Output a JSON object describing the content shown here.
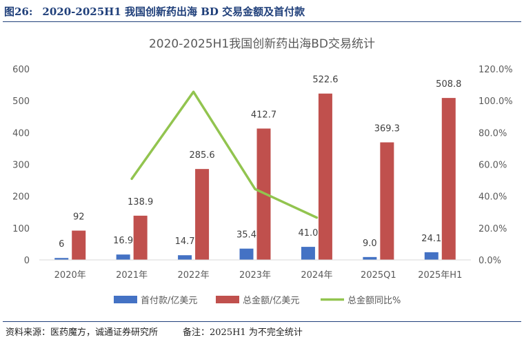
{
  "figure": {
    "number": "图26:",
    "heading": "2020-2025H1 我国创新药出海 BD 交易金额及首付款"
  },
  "footer": {
    "source": "资料来源：医药魔方，诚通证券研究所",
    "note": "备注：2025H1 为不完全统计"
  },
  "chart_data": {
    "type": "bar",
    "title": "2020-2025H1我国创新药出海BD交易统计",
    "categories": [
      "2020年",
      "2021年",
      "2022年",
      "2023年",
      "2024年",
      "2025Q1",
      "2025年H1"
    ],
    "series": [
      {
        "name": "首付款/亿美元",
        "type": "bar",
        "axis": "left",
        "color": "#4472c4",
        "values": [
          6,
          16.9,
          14.7,
          35.4,
          41.0,
          9.0,
          24.1
        ],
        "labels": [
          "6",
          "16.9",
          "14.7",
          "35.4",
          "41.0",
          "9.0",
          "24.1"
        ]
      },
      {
        "name": "总金额/亿美元",
        "type": "bar",
        "axis": "left",
        "color": "#c0504d",
        "values": [
          92,
          138.9,
          285.6,
          412.7,
          522.6,
          369.3,
          508.8
        ],
        "labels": [
          "92",
          "138.9",
          "285.6",
          "412.7",
          "522.6",
          "369.3",
          "508.8"
        ]
      },
      {
        "name": "总金额同比%",
        "type": "line",
        "axis": "right",
        "color": "#92c44f",
        "values": [
          null,
          51.0,
          105.6,
          44.5,
          26.6,
          null,
          null
        ]
      }
    ],
    "ylim": [
      0,
      600
    ],
    "yticks": [
      "0",
      "100",
      "200",
      "300",
      "400",
      "500",
      "600"
    ],
    "y2lim": [
      0,
      120
    ],
    "y2ticks": [
      "0.0%",
      "20.0%",
      "40.0%",
      "60.0%",
      "80.0%",
      "100.0%",
      "120.0%"
    ],
    "legend": "bottom",
    "grid": false
  }
}
